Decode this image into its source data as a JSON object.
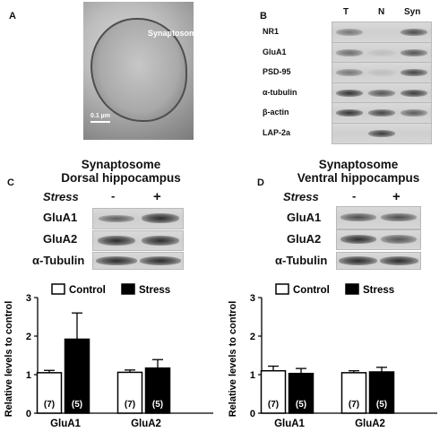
{
  "panelA": {
    "label": "A",
    "micrograph_text": "Synaptosome",
    "scalebar": "0.1 µm"
  },
  "panelB": {
    "label": "B",
    "columns": [
      "T",
      "N",
      "Syn"
    ],
    "rows": [
      "NR1",
      "GluA1",
      "PSD-95",
      "α-tubulin",
      "β-actin",
      "LAP-2a"
    ]
  },
  "panelC": {
    "label": "C",
    "title_line1": "Synaptosome",
    "title_line2": "Dorsal hippocampus",
    "stress_label": "Stress",
    "minus": "-",
    "plus": "+",
    "blots": [
      "GluA1",
      "GluA2",
      "α-Tubulin"
    ]
  },
  "panelD": {
    "label": "D",
    "title_line1": "Synaptosome",
    "title_line2": "Ventral hippocampus",
    "stress_label": "Stress",
    "minus": "-",
    "plus": "+",
    "blots": [
      "GluA1",
      "GluA2",
      "α-Tubulin"
    ]
  },
  "colors": {
    "control": "#ffffff",
    "stress": "#000000"
  },
  "chart_data": [
    {
      "type": "bar",
      "panel": "C",
      "categories": [
        "GluA1",
        "GluA2"
      ],
      "series": [
        {
          "name": "Control",
          "values": [
            1.05,
            1.06
          ],
          "errors": [
            0.06,
            0.06
          ],
          "n_labels": [
            "(7)",
            "(7)"
          ]
        },
        {
          "name": "Stress",
          "values": [
            1.92,
            1.17
          ],
          "errors": [
            0.68,
            0.22
          ],
          "n_labels": [
            "(5)",
            "(5)"
          ]
        }
      ],
      "ylabel": "Relative levels to control",
      "ylim": [
        0,
        3
      ],
      "yticks": [
        0,
        1,
        2,
        3
      ],
      "legend": "top"
    },
    {
      "type": "bar",
      "panel": "D",
      "categories": [
        "GluA1",
        "GluA2"
      ],
      "series": [
        {
          "name": "Control",
          "values": [
            1.1,
            1.05
          ],
          "errors": [
            0.12,
            0.05
          ],
          "n_labels": [
            "(7)",
            "(7)"
          ]
        },
        {
          "name": "Stress",
          "values": [
            1.03,
            1.07
          ],
          "errors": [
            0.13,
            0.12
          ],
          "n_labels": [
            "(5)",
            "(5)"
          ]
        }
      ],
      "ylabel": "Relative levels to control",
      "ylim": [
        0,
        3
      ],
      "yticks": [
        0,
        1,
        2,
        3
      ],
      "legend": "top"
    }
  ]
}
